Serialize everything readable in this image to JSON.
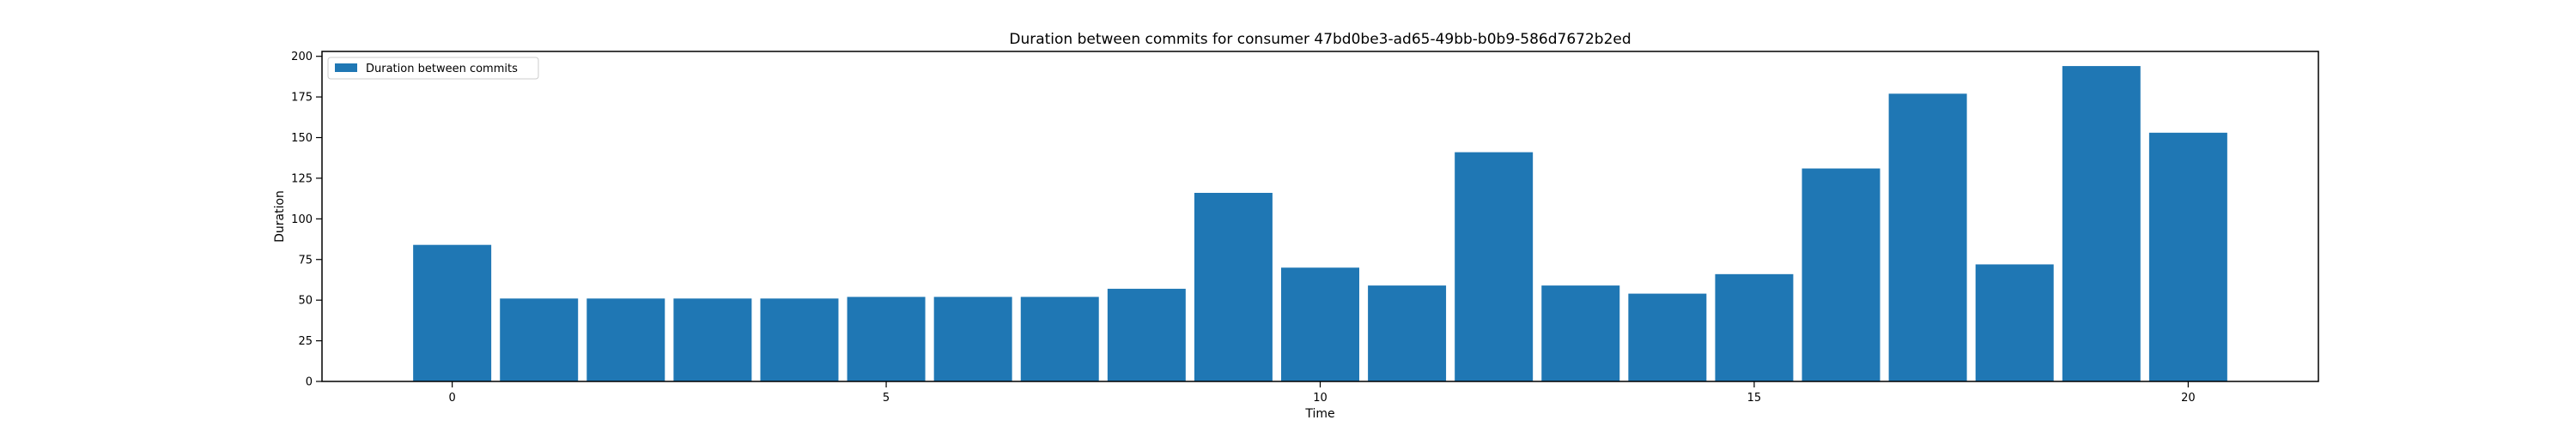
{
  "chart_data": {
    "type": "bar",
    "title": "Duration between commits for consumer 47bd0be3-ad65-49bb-b0b9-586d7672b2ed",
    "xlabel": "Time",
    "ylabel": "Duration",
    "x": [
      0,
      1,
      2,
      3,
      4,
      5,
      6,
      7,
      8,
      9,
      10,
      11,
      12,
      13,
      14,
      15,
      16,
      17,
      18,
      19,
      20
    ],
    "series": [
      {
        "name": "Duration between commits",
        "values": [
          84,
          51,
          51,
          51,
          51,
          52,
          52,
          52,
          57,
          116,
          70,
          59,
          141,
          59,
          54,
          66,
          131,
          177,
          72,
          194,
          153
        ]
      }
    ],
    "xlim": [
      -1.5,
      21.5
    ],
    "ylim": [
      0,
      203
    ],
    "xticks": [
      0,
      5,
      10,
      15,
      20
    ],
    "yticks": [
      0,
      25,
      50,
      75,
      100,
      125,
      150,
      175,
      200
    ],
    "bar_color": "#1f77b4",
    "grid": false,
    "legend_position": "top-left"
  }
}
